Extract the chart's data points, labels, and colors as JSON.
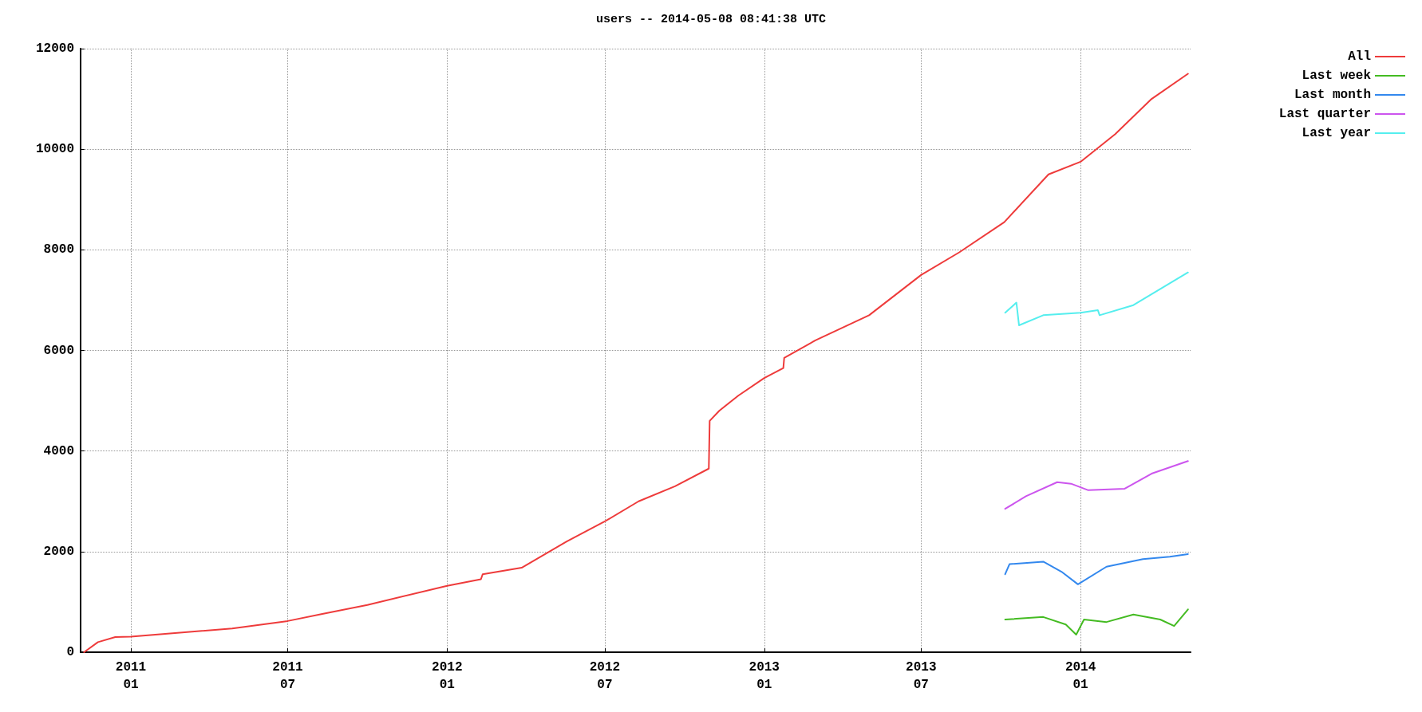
{
  "chart_data": {
    "type": "line",
    "title": "users -- 2014-05-08 08:41:38 UTC",
    "xlim": [
      "2010-11-04",
      "2014-05-08"
    ],
    "ylim": [
      0,
      12000
    ],
    "yticks": [
      0,
      2000,
      4000,
      6000,
      8000,
      10000,
      12000
    ],
    "xticks": [
      {
        "value": "2011-01-01",
        "label": "2011\n01"
      },
      {
        "value": "2011-07-01",
        "label": "2011\n07"
      },
      {
        "value": "2012-01-01",
        "label": "2012\n01"
      },
      {
        "value": "2012-07-01",
        "label": "2012\n07"
      },
      {
        "value": "2013-01-01",
        "label": "2013\n01"
      },
      {
        "value": "2013-07-01",
        "label": "2013\n07"
      },
      {
        "value": "2014-01-01",
        "label": "2014\n01"
      }
    ],
    "grid": true,
    "legend": "top right",
    "marker": "none",
    "line_style": "solid",
    "series": [
      {
        "name": "All",
        "color": "#ee3b3b",
        "x": [
          "2010-11-08",
          "2010-11-24",
          "2010-12-14",
          "2011-01-01",
          "2011-03-07",
          "2011-04-28",
          "2011-07-01",
          "2011-08-10",
          "2011-10-01",
          "2012-01-01",
          "2012-02-09",
          "2012-02-11",
          "2012-03-27",
          "2012-05-18",
          "2012-07-01",
          "2012-08-09",
          "2012-09-20",
          "2012-10-29",
          "2012-10-30",
          "2012-11-10",
          "2012-12-02",
          "2013-01-01",
          "2013-01-23",
          "2013-01-24",
          "2013-03-01",
          "2013-05-02",
          "2013-07-01",
          "2013-08-14",
          "2013-10-05",
          "2013-11-25",
          "2014-01-01",
          "2014-02-10",
          "2014-03-24",
          "2014-05-05"
        ],
        "values": [
          0,
          200,
          300,
          310,
          400,
          470,
          620,
          760,
          940,
          1320,
          1450,
          1550,
          1680,
          2200,
          2600,
          3000,
          3300,
          3650,
          4600,
          4800,
          5100,
          5450,
          5650,
          5850,
          6200,
          6700,
          7500,
          7950,
          8550,
          9500,
          9750,
          10300,
          11000,
          11500
        ]
      },
      {
        "name": "Last week",
        "color": "#44bb22",
        "x": [
          "2013-10-06",
          "2013-11-19",
          "2013-12-15",
          "2013-12-27",
          "2014-01-05",
          "2014-01-31",
          "2014-03-03",
          "2014-04-03",
          "2014-04-19",
          "2014-05-05"
        ],
        "values": [
          650,
          700,
          550,
          350,
          650,
          600,
          750,
          650,
          520,
          850
        ]
      },
      {
        "name": "Last month",
        "color": "#3388ee",
        "x": [
          "2013-10-06",
          "2013-10-11",
          "2013-11-19",
          "2013-12-10",
          "2013-12-29",
          "2014-01-31",
          "2014-03-14",
          "2014-04-14",
          "2014-05-05"
        ],
        "values": [
          1550,
          1750,
          1800,
          1600,
          1350,
          1700,
          1850,
          1900,
          1950
        ]
      },
      {
        "name": "Last quarter",
        "color": "#cc55ee",
        "x": [
          "2013-10-06",
          "2013-10-30",
          "2013-12-05",
          "2013-12-21",
          "2014-01-10",
          "2014-02-21",
          "2014-03-24",
          "2014-05-05"
        ],
        "values": [
          2850,
          3100,
          3380,
          3350,
          3220,
          3250,
          3550,
          3800
        ]
      },
      {
        "name": "Last year",
        "color": "#55eeee",
        "x": [
          "2013-10-06",
          "2013-10-19",
          "2013-10-22",
          "2013-11-19",
          "2014-01-01",
          "2014-01-21",
          "2014-01-23",
          "2014-03-03",
          "2014-05-05"
        ],
        "values": [
          6750,
          6950,
          6500,
          6700,
          6750,
          6800,
          6700,
          6900,
          7550
        ]
      }
    ]
  }
}
